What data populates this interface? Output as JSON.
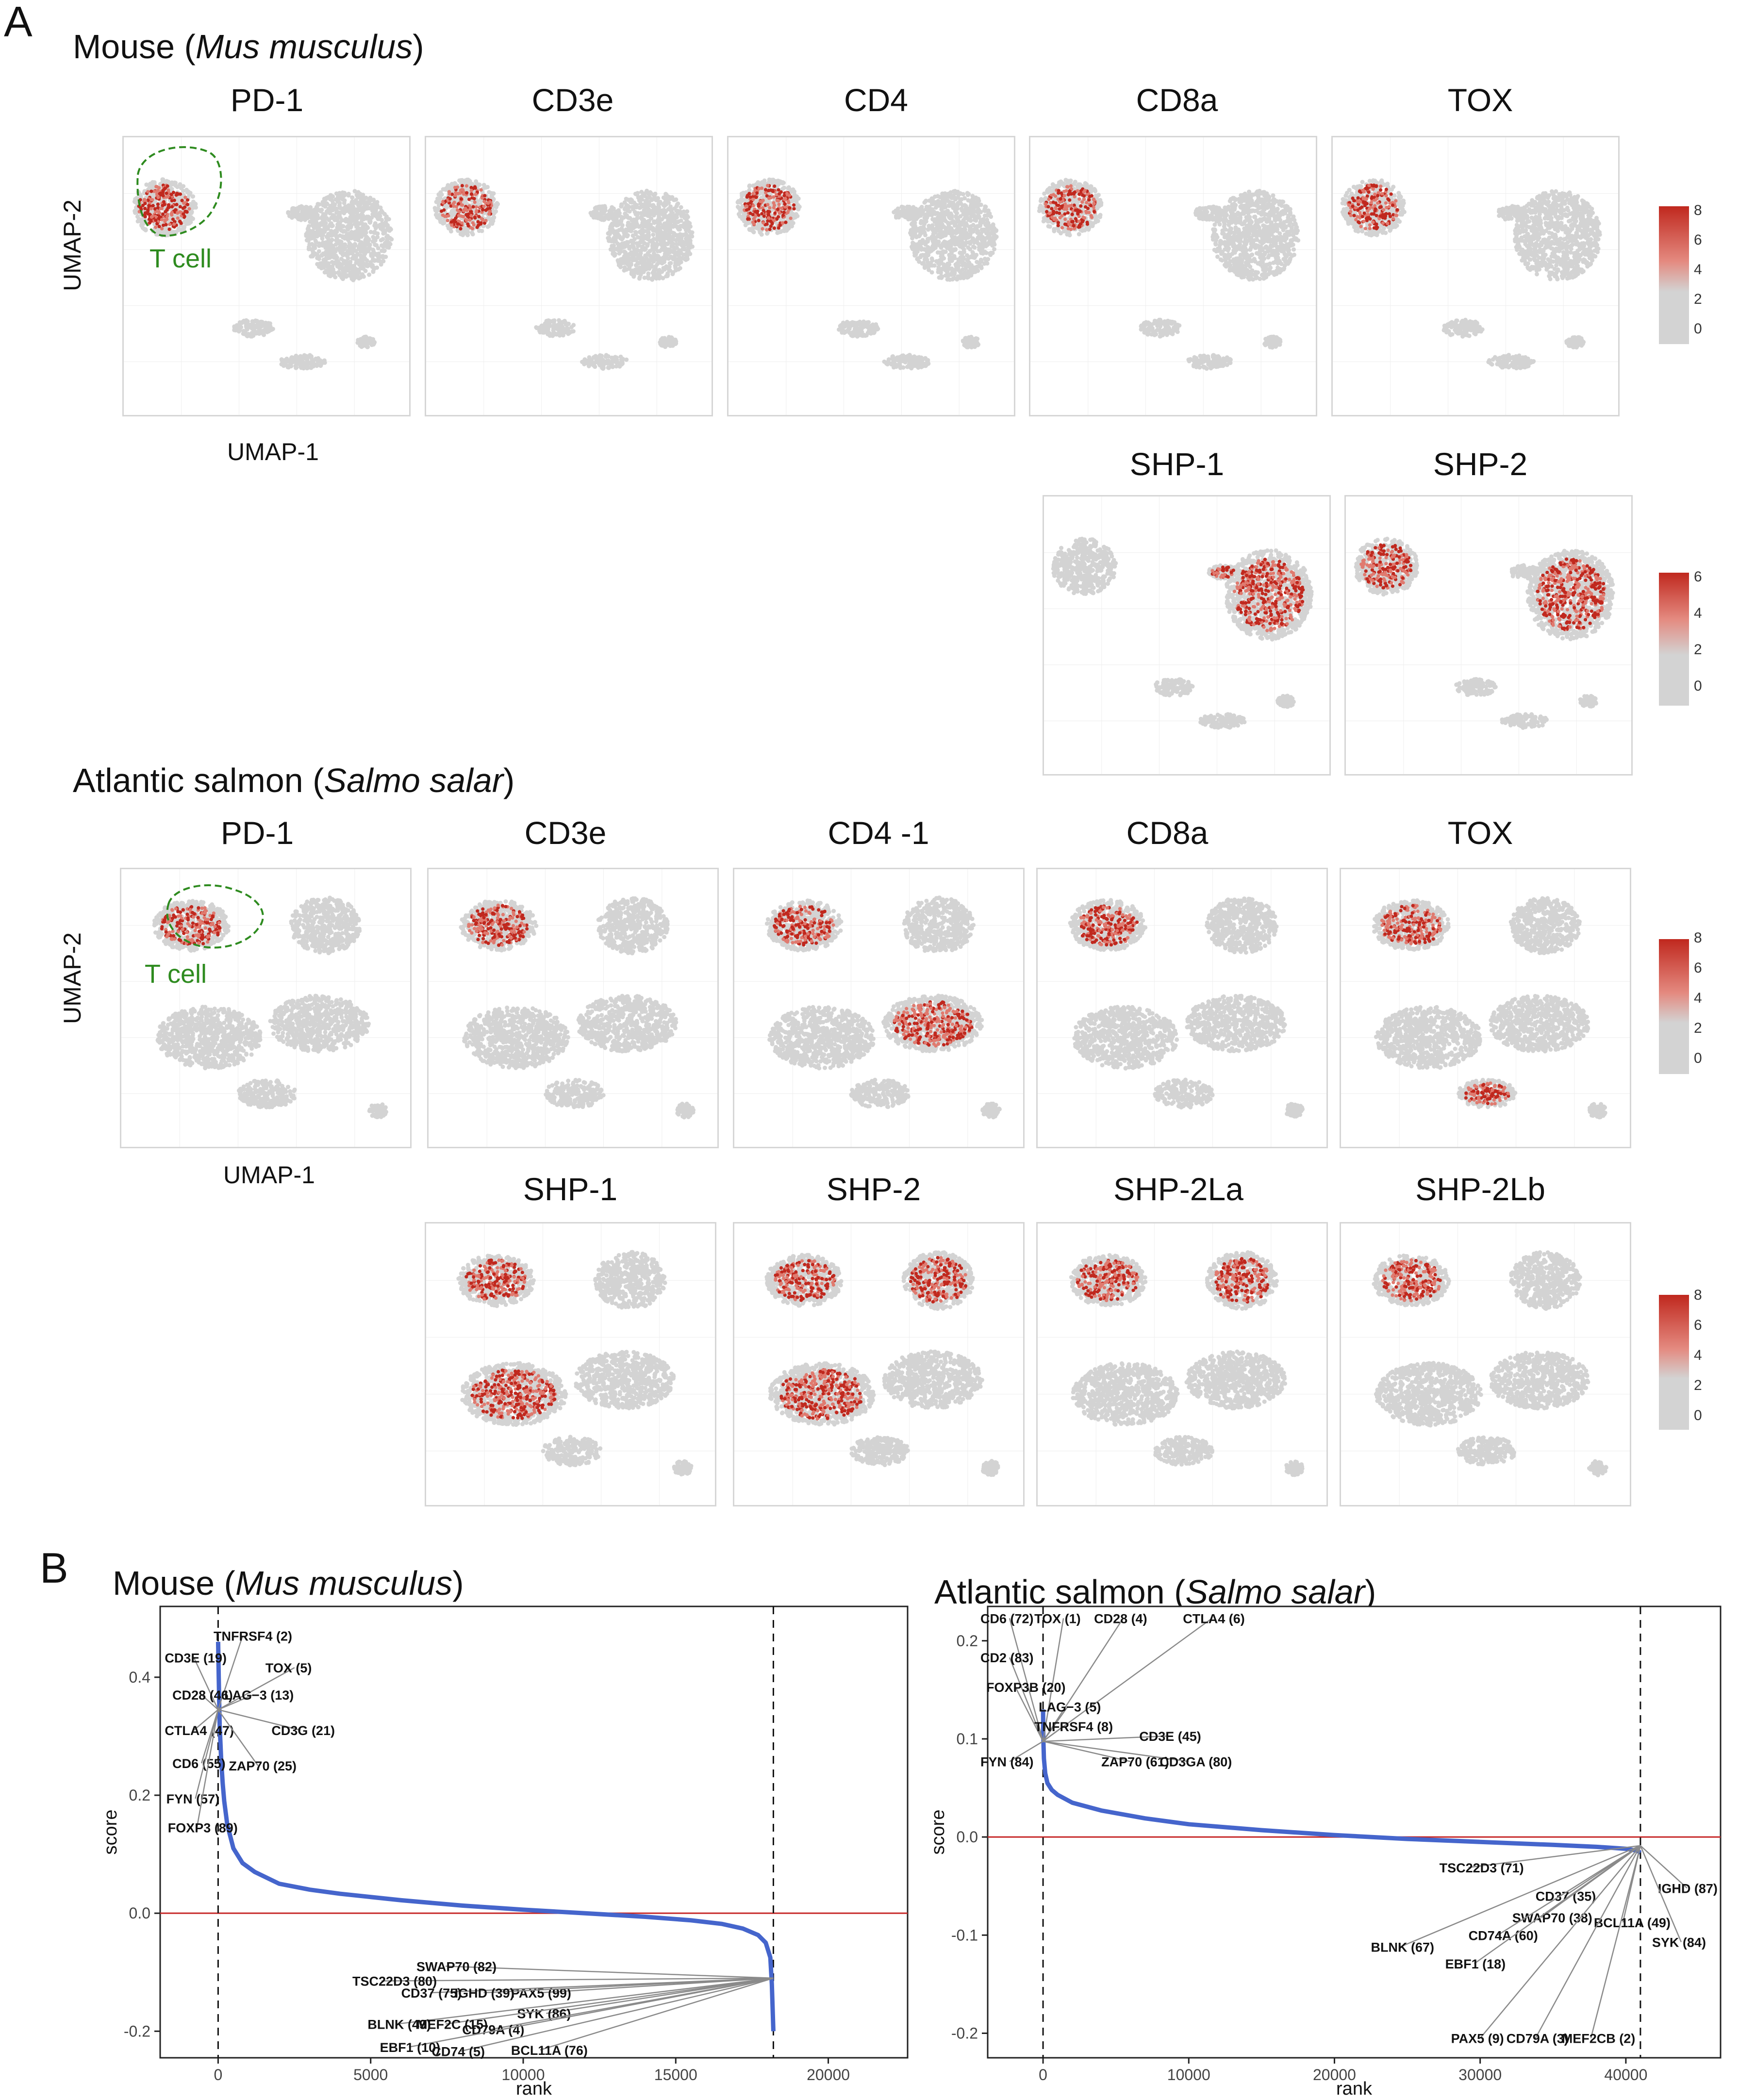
{
  "panel_a": {
    "letter": "A",
    "mouse": {
      "title_prefix": "Mouse (",
      "title_italic": "Mus musculus",
      "title_suffix": ")",
      "genes_row1": [
        "PD-1",
        "CD3e",
        "CD4",
        "CD8a",
        "TOX"
      ],
      "genes_row2": [
        "SHP-1",
        "SHP-2"
      ],
      "legend1_ticks": [
        "8",
        "6",
        "4",
        "2",
        "0"
      ],
      "legend2_ticks": [
        "6",
        "4",
        "2",
        "0"
      ],
      "tcell_label": "T cell",
      "xlabel": "UMAP-1",
      "ylabel": "UMAP-2"
    },
    "salmon": {
      "title_prefix": "Atlantic salmon (",
      "title_italic": "Salmo salar",
      "title_suffix": ")",
      "genes_row1": [
        "PD-1",
        "CD3e",
        "CD4 -1",
        "CD8a",
        "TOX"
      ],
      "genes_row2": [
        "SHP-1",
        "SHP-2",
        "SHP-2La",
        "SHP-2Lb"
      ],
      "legend1_ticks": [
        "8",
        "6",
        "4",
        "2",
        "0"
      ],
      "legend2_ticks": [
        "8",
        "6",
        "4",
        "2",
        "0"
      ],
      "tcell_label": "T cell",
      "xlabel": "UMAP-1",
      "ylabel": "UMAP-2"
    },
    "colors": {
      "low": "#d3d3d3",
      "high": "#c0281e",
      "tcell_outline": "#2e8b1f"
    }
  },
  "panel_b": {
    "letter": "B",
    "chart_data": [
      {
        "type": "line",
        "title_prefix": "Mouse (",
        "title_italic": "Mus musculus",
        "title_suffix": ")",
        "xlabel": "rank",
        "ylabel": "score",
        "xlim": [
          -1900,
          22600
        ],
        "ylim": [
          -0.245,
          0.52
        ],
        "xticks": [
          0,
          5000,
          10000,
          15000,
          20000
        ],
        "yticks": [
          -0.2,
          0.0,
          0.2,
          0.4
        ],
        "ytick_labels": [
          "-0.2",
          "0.0",
          "0.2",
          "0.4"
        ],
        "vlines": [
          0,
          18200
        ],
        "hline": 0.0,
        "curve": {
          "x": [
            0,
            20,
            50,
            100,
            150,
            200,
            300,
            500,
            800,
            1200,
            2000,
            3000,
            4000,
            6000,
            8000,
            10000,
            12000,
            14000,
            15500,
            16500,
            17200,
            17700,
            17950,
            18100,
            18150,
            18200
          ],
          "y": [
            0.46,
            0.4,
            0.32,
            0.26,
            0.22,
            0.19,
            0.15,
            0.11,
            0.085,
            0.07,
            0.05,
            0.04,
            0.033,
            0.022,
            0.013,
            0.006,
            0.0,
            -0.006,
            -0.012,
            -0.018,
            -0.026,
            -0.037,
            -0.05,
            -0.075,
            -0.12,
            -0.2
          ]
        },
        "top_labels": [
          {
            "text": "TNFRSF4 (2)",
            "x": -150,
            "y": 0.462
          },
          {
            "text": "CD3E (19)",
            "x": -1750,
            "y": 0.425
          },
          {
            "text": "TOX (5)",
            "x": 1550,
            "y": 0.408
          },
          {
            "text": "LAG−3 (13)",
            "x": 200,
            "y": 0.362
          },
          {
            "text": "CD28 (46)",
            "x": -1500,
            "y": 0.362
          },
          {
            "text": "CD3G (21)",
            "x": 1750,
            "y": 0.302
          },
          {
            "text": "CTLA4 (47)",
            "x": -1750,
            "y": 0.302
          },
          {
            "text": "CD6 (55)",
            "x": -1500,
            "y": 0.246
          },
          {
            "text": "ZAP70 (25)",
            "x": 350,
            "y": 0.242
          },
          {
            "text": "FYN (57)",
            "x": -1700,
            "y": 0.186
          },
          {
            "text": "FOXP3 (89)",
            "x": -1650,
            "y": 0.137
          }
        ],
        "bottom_labels": [
          {
            "text": "SWAP70 (82)",
            "x": 6500,
            "y": -0.098
          },
          {
            "text": "TSC22D3 (80)",
            "x": 4400,
            "y": -0.123
          },
          {
            "text": "PAX5 (99)",
            "x": 9600,
            "y": -0.143
          },
          {
            "text": "CD37 (75)",
            "x": 6000,
            "y": -0.143
          },
          {
            "text": "IGHD (39)",
            "x": 7750,
            "y": -0.143
          },
          {
            "text": "SYK (86)",
            "x": 9800,
            "y": -0.178
          },
          {
            "text": "BLNK (49)",
            "x": 4900,
            "y": -0.196
          },
          {
            "text": "MEF2C (15)",
            "x": 6500,
            "y": -0.196
          },
          {
            "text": "CD79A (4)",
            "x": 8000,
            "y": -0.205
          },
          {
            "text": "BCL11A (76)",
            "x": 9600,
            "y": -0.24
          },
          {
            "text": "EBF1 (10)",
            "x": 5300,
            "y": -0.235
          },
          {
            "text": "CD74 (5)",
            "x": 7000,
            "y": -0.242
          }
        ]
      },
      {
        "type": "line",
        "title_prefix": "Atlantic salmon (",
        "title_italic": "Salmo salar",
        "title_suffix": ")",
        "xlabel": "rank",
        "ylabel": "score",
        "xlim": [
          -3800,
          46500
        ],
        "ylim": [
          -0.225,
          0.235
        ],
        "xticks": [
          0,
          10000,
          20000,
          30000,
          40000
        ],
        "yticks": [
          -0.2,
          -0.1,
          0.0,
          0.1,
          0.2
        ],
        "ytick_labels": [
          "-0.2",
          "-0.1",
          "0.0",
          "0.1",
          "0.2"
        ],
        "vlines": [
          0,
          41000
        ],
        "hline": 0.0,
        "curve": {
          "x": [
            0,
            20,
            60,
            150,
            300,
            600,
            1000,
            2000,
            4000,
            7000,
            10000,
            15000,
            20000,
            25000,
            30000,
            35000,
            38000,
            40000,
            40800,
            41000
          ],
          "y": [
            0.13,
            0.1,
            0.08,
            0.065,
            0.055,
            0.048,
            0.043,
            0.035,
            0.027,
            0.019,
            0.013,
            0.007,
            0.002,
            -0.002,
            -0.005,
            -0.008,
            -0.01,
            -0.012,
            -0.014,
            -0.016
          ]
        },
        "top_labels": [
          {
            "text": "CD6 (72)",
            "x": -4300,
            "y": 0.218
          },
          {
            "text": "TOX (1)",
            "x": -600,
            "y": 0.218
          },
          {
            "text": "CD28 (4)",
            "x": 3500,
            "y": 0.218
          },
          {
            "text": "CTLA4 (6)",
            "x": 9600,
            "y": 0.218
          },
          {
            "text": "CD2 (83)",
            "x": -4300,
            "y": 0.178
          },
          {
            "text": "FOXP3B (20)",
            "x": -3900,
            "y": 0.148
          },
          {
            "text": "LAG−3 (5)",
            "x": -300,
            "y": 0.128
          },
          {
            "text": "TNFRSF4 (8)",
            "x": -600,
            "y": 0.108
          },
          {
            "text": "CD3E (45)",
            "x": 6600,
            "y": 0.098
          },
          {
            "text": "FYN (84)",
            "x": -4300,
            "y": 0.072
          },
          {
            "text": "ZAP70 (61)",
            "x": 4000,
            "y": 0.072
          },
          {
            "text": "CD3GA (80)",
            "x": 8000,
            "y": 0.072
          }
        ],
        "bottom_labels": [
          {
            "text": "TSC22D3 (71)",
            "x": 27200,
            "y": -0.036
          },
          {
            "text": "IGHD (87)",
            "x": 42200,
            "y": -0.057
          },
          {
            "text": "CD37 (35)",
            "x": 33800,
            "y": -0.065
          },
          {
            "text": "SWAP70 (38)",
            "x": 32200,
            "y": -0.087
          },
          {
            "text": "BCL11A (49)",
            "x": 37800,
            "y": -0.092
          },
          {
            "text": "CD74A (60)",
            "x": 29200,
            "y": -0.105
          },
          {
            "text": "BLNK (67)",
            "x": 22500,
            "y": -0.117
          },
          {
            "text": "SYK (84)",
            "x": 41800,
            "y": -0.112
          },
          {
            "text": "EBF1 (18)",
            "x": 27600,
            "y": -0.134
          },
          {
            "text": "PAX5 (9)",
            "x": 28000,
            "y": -0.21
          },
          {
            "text": "CD79A (3)",
            "x": 31800,
            "y": -0.21
          },
          {
            "text": "MEF2CB (2)",
            "x": 35600,
            "y": -0.21
          }
        ]
      }
    ],
    "colors": {
      "curve": "#4565cc",
      "hline": "#c62828",
      "connector": "#8a8a8a"
    }
  }
}
